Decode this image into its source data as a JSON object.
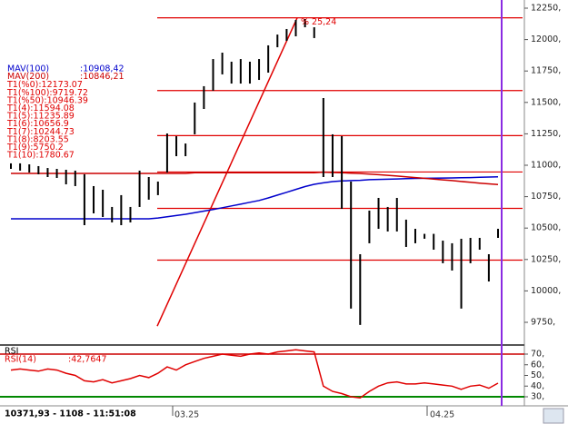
{
  "chart_data": {
    "type": "ohlc",
    "bar_color": "#000000",
    "high": [
      11015,
      11015,
      11007,
      10993,
      10978,
      10971,
      10964,
      10957,
      10928,
      10834,
      10805,
      10668,
      10762,
      10668,
      10957,
      10906,
      10870,
      11253,
      11231,
      11173,
      11499,
      11629,
      11845,
      11896,
      11824,
      11845,
      11824,
      11845,
      11954,
      12040,
      12084,
      12156,
      12163,
      12098,
      11535,
      11246,
      11231,
      10870,
      10292,
      10639,
      10740,
      10668,
      10740,
      10567,
      10494,
      10454,
      10454,
      10400,
      10379,
      10415,
      10422,
      10422,
      10292,
      10494
    ],
    "low": [
      10971,
      10957,
      10942,
      10928,
      10906,
      10899,
      10848,
      10834,
      10523,
      10617,
      10588,
      10545,
      10523,
      10545,
      10668,
      10726,
      10762,
      10942,
      11072,
      11072,
      11246,
      11448,
      11593,
      11723,
      11650,
      11650,
      11650,
      11679,
      11737,
      11939,
      11990,
      12026,
      12098,
      12012,
      10906,
      10906,
      10653,
      9859,
      9729,
      10379,
      10494,
      10473,
      10473,
      10350,
      10379,
      10415,
      10328,
      10220,
      10162,
      9859,
      10220,
      10328,
      10075,
      10422
    ],
    "ylim": [
      9750,
      12250
    ],
    "yticks": [
      {
        "value": 9750,
        "label": "9750,"
      },
      {
        "value": 10000,
        "label": "10000,"
      },
      {
        "value": 10250,
        "label": "10250,"
      },
      {
        "value": 10500,
        "label": "10500,"
      },
      {
        "value": 10750,
        "label": "10750,"
      },
      {
        "value": 11000,
        "label": "11000,"
      },
      {
        "value": 11250,
        "label": "11250,"
      },
      {
        "value": 11500,
        "label": "11500,"
      },
      {
        "value": 11750,
        "label": "11750,"
      },
      {
        "value": 12000,
        "label": "12000,"
      },
      {
        "value": 12250,
        "label": "12250,"
      }
    ],
    "moving_averages": [
      {
        "name": "MAV(100)",
        "value": 10908.42,
        "value_label": ":10908,42",
        "color": "#0000cc",
        "values": [
          10574,
          10574,
          10574,
          10574,
          10574,
          10574,
          10574,
          10574,
          10574,
          10574,
          10574,
          10574,
          10574,
          10574,
          10574,
          10574,
          10580,
          10590,
          10600,
          10610,
          10622,
          10635,
          10648,
          10662,
          10676,
          10690,
          10705,
          10720,
          10740,
          10762,
          10785,
          10808,
          10830,
          10848,
          10860,
          10870,
          10875,
          10878,
          10880,
          10885,
          10887,
          10889,
          10891,
          10893,
          10895,
          10896,
          10897,
          10898,
          10899,
          10900,
          10902,
          10904,
          10906,
          10908
        ]
      },
      {
        "name": "MAV(200)",
        "value": 10846.21,
        "value_label": ":10846,21",
        "color": "#cc0000",
        "values": [
          10935,
          10935,
          10935,
          10935,
          10935,
          10935,
          10935,
          10935,
          10935,
          10935,
          10935,
          10935,
          10935,
          10935,
          10935,
          10935,
          10935,
          10935,
          10935,
          10935,
          10940,
          10940,
          10940,
          10940,
          10940,
          10940,
          10940,
          10940,
          10940,
          10940,
          10940,
          10940,
          10940,
          10940,
          10945,
          10942,
          10940,
          10937,
          10934,
          10930,
          10925,
          10920,
          10914,
          10908,
          10902,
          10896,
          10890,
          10884,
          10878,
          10871,
          10865,
          10858,
          10852,
          10846
        ]
      }
    ],
    "levels": [
      {
        "name": "T1(%0):",
        "value": 12173.07
      },
      {
        "name": "T1(%100):",
        "value": 9719.72
      },
      {
        "name": "T1(%50):",
        "value": 10946.39
      },
      {
        "name": "T1(4):",
        "value": 11594.08
      },
      {
        "name": "T1(5):",
        "value": 11235.89
      },
      {
        "name": "T1(6):",
        "value": 10656.9
      },
      {
        "name": "T1(7):",
        "value": 10244.73
      },
      {
        "name": "T1(8):",
        "value": 8203.55
      },
      {
        "name": "T1(9):",
        "value": 5750.2
      },
      {
        "name": "T1(10):",
        "value": 1780.67
      }
    ],
    "level_color": "#e00000",
    "annotation": "% 25,24",
    "x_tick_labels": [
      "03.25",
      "04.25"
    ],
    "rsi": {
      "title": "RSI",
      "name": "RSI(14)",
      "value": 42.7647,
      "value_label": ":42,7647",
      "color": "#e00000",
      "values": [
        55,
        56,
        55,
        54,
        56,
        55,
        52,
        50,
        45,
        44,
        46,
        43,
        45,
        47,
        50,
        48,
        52,
        58,
        55,
        60,
        63,
        66,
        68,
        70,
        69,
        68,
        70,
        71,
        70,
        72,
        73,
        74,
        73,
        72,
        40,
        35,
        33,
        30,
        29,
        35,
        40,
        43,
        44,
        42,
        42,
        43,
        42,
        41,
        40,
        37,
        40,
        41,
        38,
        42.7647
      ],
      "ylim": [
        30,
        70
      ],
      "yticks": [
        {
          "value": 30,
          "label": "30,"
        },
        {
          "value": 40,
          "label": "40,"
        },
        {
          "value": 50,
          "label": "50,"
        },
        {
          "value": 60,
          "label": "60,"
        },
        {
          "value": 70,
          "label": "70,"
        }
      ],
      "upper_color": "#cc0000",
      "lower_color": "#008800"
    },
    "status": "10371,93 - 1108 - 11:51:08"
  }
}
